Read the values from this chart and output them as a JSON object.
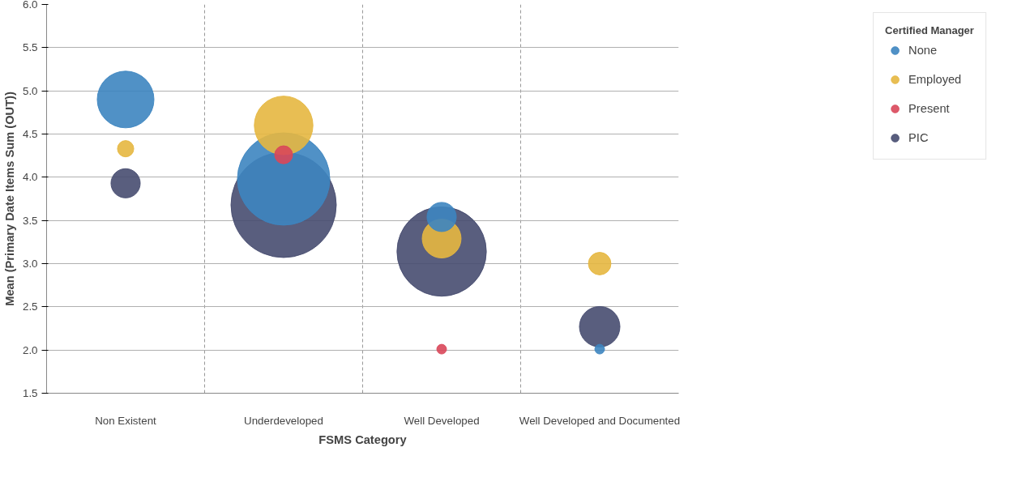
{
  "chart_data": {
    "type": "bubble",
    "xlabel": "FSMS Category",
    "ylabel": "Mean (Primary Date Items Sum (OUT))",
    "legend_title": "Certified Manager",
    "categories": [
      "Non Existent",
      "Underdeveloped",
      "Well Developed",
      "Well Developed and Documented"
    ],
    "series": [
      {
        "name": "None",
        "color": "#3d85c0",
        "values": [
          4.9,
          3.98,
          3.54,
          2.01
        ],
        "sizes": [
          0.29,
          0.77,
          0.077,
          0.0085
        ]
      },
      {
        "name": "Employed",
        "color": "#e6b740",
        "values": [
          4.33,
          4.6,
          3.29,
          3.0
        ],
        "sizes": [
          0.024,
          0.31,
          0.136,
          0.046
        ]
      },
      {
        "name": "Present",
        "color": "#d9475a",
        "values": [
          null,
          4.26,
          2.01,
          null
        ],
        "sizes": [
          null,
          0.029,
          0.0085,
          null
        ]
      },
      {
        "name": "PIC",
        "color": "#474c70",
        "values": [
          3.93,
          3.68,
          3.14,
          2.27
        ],
        "sizes": [
          0.077,
          1,
          0.72,
          0.148
        ]
      }
    ],
    "ylim": [
      1.5,
      6.0
    ],
    "yticks": [
      {
        "value": 1.5,
        "label": "1.5"
      },
      {
        "value": 2,
        "label": "2.0"
      },
      {
        "value": 2.5,
        "label": "2.5"
      },
      {
        "value": 3,
        "label": "3.0"
      },
      {
        "value": 3.5,
        "label": "3.5"
      },
      {
        "value": 4,
        "label": "4.0"
      },
      {
        "value": 4.5,
        "label": "4.5"
      },
      {
        "value": 5,
        "label": "5.0"
      },
      {
        "value": 5.5,
        "label": "5.5"
      },
      {
        "value": 6,
        "label": "6.0"
      }
    ],
    "grid": true,
    "legend": "top right"
  }
}
